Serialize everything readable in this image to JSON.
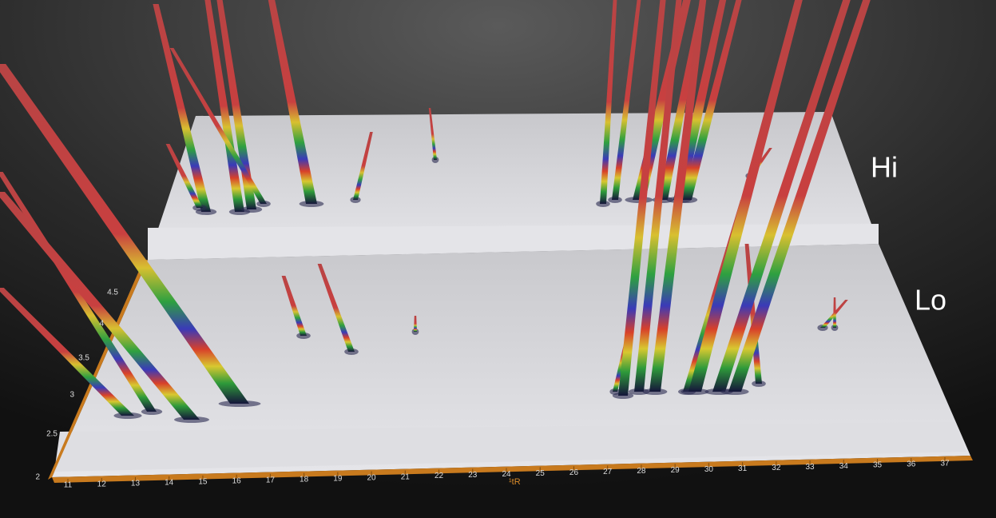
{
  "labels": {
    "upper_plane": "Hi",
    "lower_plane": "Lo"
  },
  "x_axis": {
    "label": "¹tR",
    "ticks": [
      11,
      12,
      13,
      14,
      15,
      16,
      17,
      18,
      19,
      20,
      21,
      22,
      23,
      24,
      25,
      26,
      27,
      28,
      29,
      30,
      31,
      32,
      33,
      34,
      35,
      36,
      37
    ]
  },
  "y_axis": {
    "ticks": [
      2,
      2.5,
      3,
      3.5,
      4,
      4.5
    ]
  }
}
